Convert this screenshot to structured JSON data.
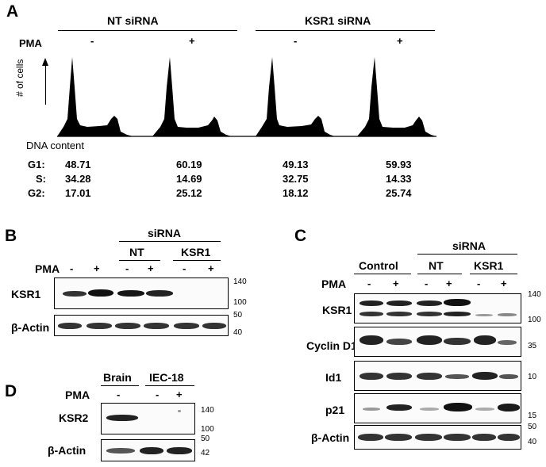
{
  "panels": {
    "a": "A",
    "b": "B",
    "c": "C",
    "d": "D"
  },
  "panel_a": {
    "group_headers": [
      "NT siRNA",
      "KSR1 siRNA"
    ],
    "pma_label": "PMA",
    "pma_signs": [
      "-",
      "+",
      "-",
      "+"
    ],
    "y_label": "# of cells",
    "x_label": "DNA content",
    "rows": [
      {
        "label": "G1:",
        "values": [
          "48.71",
          "60.19",
          "49.13",
          "59.93"
        ]
      },
      {
        "label": "S:",
        "values": [
          "34.28",
          "14.69",
          "32.75",
          "14.33"
        ]
      },
      {
        "label": "G2:",
        "values": [
          "17.01",
          "25.12",
          "18.12",
          "25.74"
        ]
      }
    ]
  },
  "panel_b": {
    "sirna_label": "siRNA",
    "groups": [
      "NT",
      "KSR1"
    ],
    "pma_label": "PMA",
    "pma_signs": [
      "-",
      "+",
      "-",
      "+",
      "-",
      "+"
    ],
    "row_labels": [
      "KSR1",
      "β-Actin"
    ],
    "markers": [
      "140",
      "100",
      "50",
      "40"
    ]
  },
  "panel_c": {
    "sirna_label": "siRNA",
    "groups": [
      "Control",
      "NT",
      "KSR1"
    ],
    "pma_label": "PMA",
    "pma_signs": [
      "-",
      "+",
      "-",
      "+",
      "-",
      "+"
    ],
    "row_labels": [
      "KSR1",
      "Cyclin D1",
      "Id1",
      "p21",
      "β-Actin"
    ],
    "markers": [
      "140",
      "100",
      "35",
      "10",
      "15",
      "50",
      "40"
    ]
  },
  "panel_d": {
    "groups": [
      "Brain",
      "IEC-18"
    ],
    "pma_label": "PMA",
    "pma_signs": [
      "-",
      "-",
      "+"
    ],
    "row_labels": [
      "KSR2",
      "β-Actin"
    ],
    "markers": [
      "140",
      "100",
      "50",
      "42"
    ]
  },
  "colors": {
    "ink": "#000000",
    "band": "#1a1a1a",
    "background": "#ffffff"
  }
}
